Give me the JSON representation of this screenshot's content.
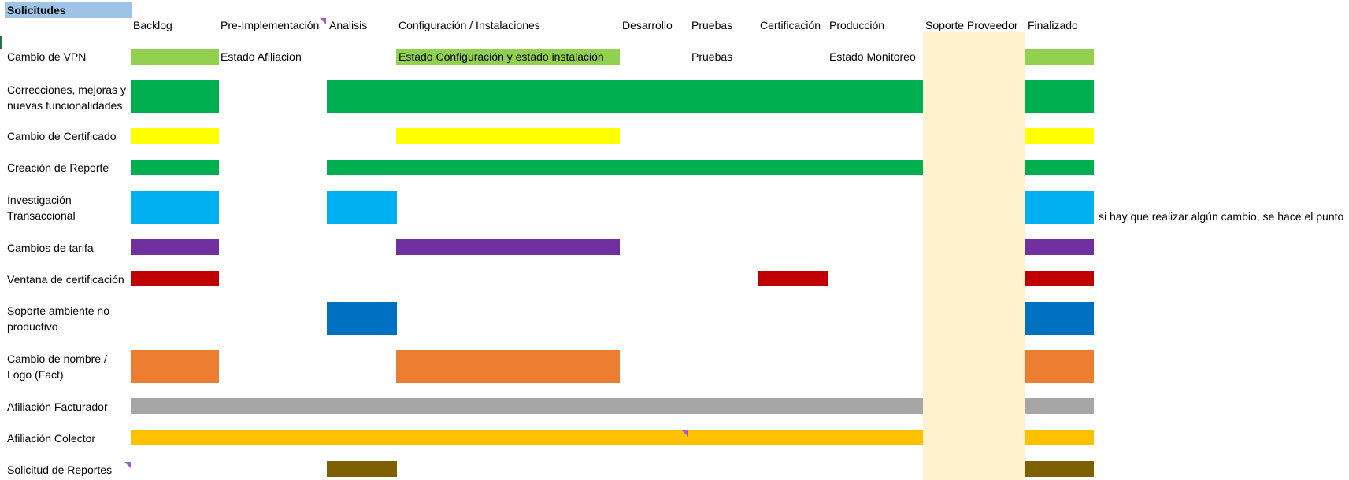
{
  "sheet": {
    "title": "Solicitudes",
    "columns": [
      "Backlog",
      "Pre-Implementación",
      "Analisis",
      "Configuración / Instalaciones",
      "Desarrollo",
      "Pruebas",
      "Certificación",
      "Producción",
      "Soporte Proveedor",
      "Finalizado"
    ],
    "rows": [
      {
        "label": "Cambio de VPN",
        "cells": [
          "Estado Afiliacion",
          "Estado Configuración y estado instalación",
          "Pruebas",
          "Estado Monitoreo"
        ]
      },
      {
        "label": "Correcciones, mejoras y nuevas funcionalidades"
      },
      {
        "label": "Cambio de Certificado"
      },
      {
        "label": "Creación de Reporte"
      },
      {
        "label": "Investigación Transaccional",
        "note": "si hay que realizar algún cambio, se hace el punto"
      },
      {
        "label": "Cambios de tarifa"
      },
      {
        "label": "Ventana de certificación"
      },
      {
        "label": "Soporte ambiente no productivo"
      },
      {
        "label": "Cambio de nombre / Logo (Fact)"
      },
      {
        "label": "Afiliación Facturador"
      },
      {
        "label": "Afiliación Colector"
      },
      {
        "label": "Solicitud de Reportes"
      }
    ]
  },
  "colors": {
    "title_fill": "#9dc3e6",
    "support_column": "#fff2cc",
    "light_green": "#92d050",
    "green": "#00b050",
    "yellow": "#ffff00",
    "light_blue": "#00b0f0",
    "purple": "#7030a0",
    "red": "#c00000",
    "blue": "#0070c0",
    "orange": "#ed7d31",
    "gray": "#a6a6a6",
    "gold": "#ffc000",
    "brown": "#7f6000",
    "comment_marker": "#a05cc8"
  }
}
